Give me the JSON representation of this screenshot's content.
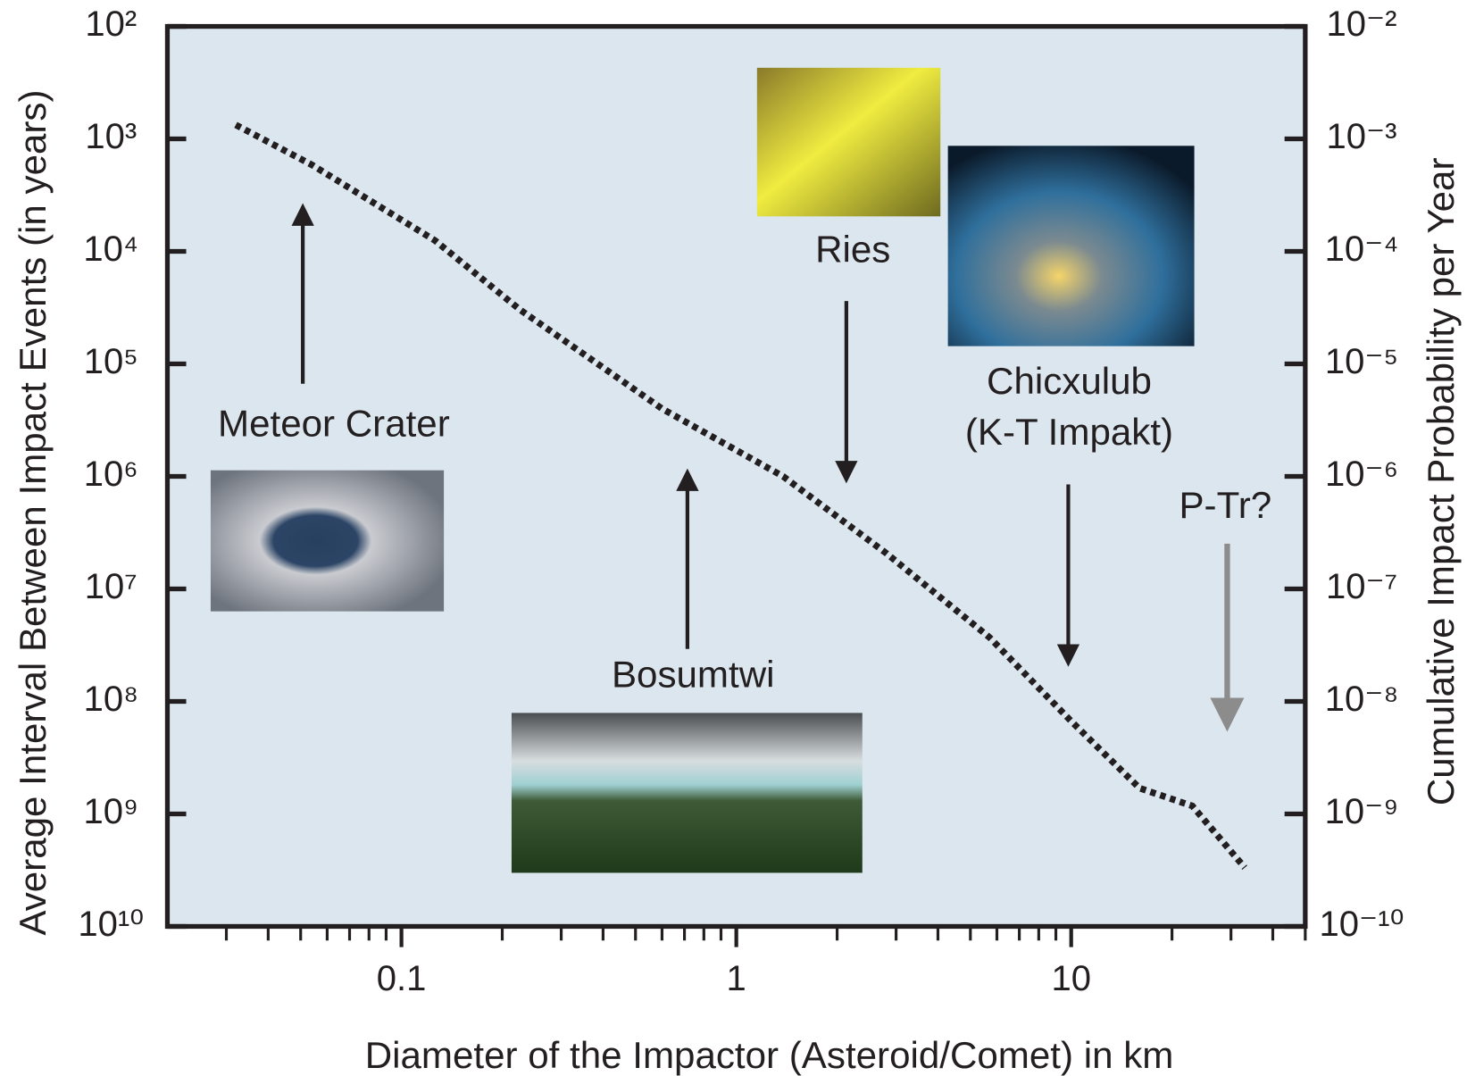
{
  "chart_data": {
    "type": "line",
    "x_label": "Diameter of the Impactor (Asteroid/Comet) in km",
    "y_label": "Average Interval Between Impact Events (in years)",
    "y2_label": "Cumulative Impact Probability per Year",
    "x": [
      0.032,
      0.054,
      0.126,
      0.226,
      0.6,
      1.38,
      2.8,
      5.7,
      10,
      16,
      23,
      33
    ],
    "values": [
      750,
      1700,
      8000,
      33000,
      250000,
      1000000,
      4800000,
      27000000,
      150000000,
      590000000,
      850000000,
      3000000000
    ],
    "color": "#231f20",
    "x_log": true,
    "y_log": true,
    "y_inverted": true,
    "xlim": [
      0.02,
      50
    ],
    "xticks": [
      0.1,
      1,
      10
    ],
    "xminorticks": [
      0.03,
      0.04,
      0.05,
      0.06,
      0.07,
      0.08,
      0.09,
      0.2,
      0.3,
      0.4,
      0.5,
      0.6,
      0.7,
      0.8,
      0.9,
      2,
      3,
      4,
      5,
      6,
      7,
      8,
      9,
      20,
      30,
      40,
      50
    ],
    "ylim": [
      100,
      10000000000
    ],
    "yticks": [
      {
        "value": 100,
        "label": "10²"
      },
      {
        "value": 1000,
        "label": "10³"
      },
      {
        "value": 10000,
        "label": "10⁴"
      },
      {
        "value": 100000,
        "label": "10⁵"
      },
      {
        "value": 1000000,
        "label": "10⁶"
      },
      {
        "value": 10000000,
        "label": "10⁷"
      },
      {
        "value": 100000000,
        "label": "10⁸"
      },
      {
        "value": 1000000000,
        "label": "10⁹"
      },
      {
        "value": 10000000000,
        "label": "10¹⁰"
      }
    ],
    "y2lim": [
      1e-10,
      0.01
    ],
    "y2ticks": [
      {
        "value": 0.01,
        "label": "10⁻²"
      },
      {
        "value": 0.001,
        "label": "10⁻³"
      },
      {
        "value": 0.0001,
        "label": "10⁻⁴"
      },
      {
        "value": 1e-05,
        "label": "10⁻⁵"
      },
      {
        "value": 1e-06,
        "label": "10⁻⁶"
      },
      {
        "value": 1e-07,
        "label": "10⁻⁷"
      },
      {
        "value": 1e-08,
        "label": "10⁻⁸"
      },
      {
        "value": 1e-09,
        "label": "10⁻⁹"
      },
      {
        "value": 1e-10,
        "label": "10⁻¹⁰"
      }
    ],
    "annotations": [
      "Meteor Crater",
      "Bosumtwi",
      "Ries",
      "Chicxulub",
      "(K-T Impakt)",
      "P-Tr?"
    ]
  }
}
